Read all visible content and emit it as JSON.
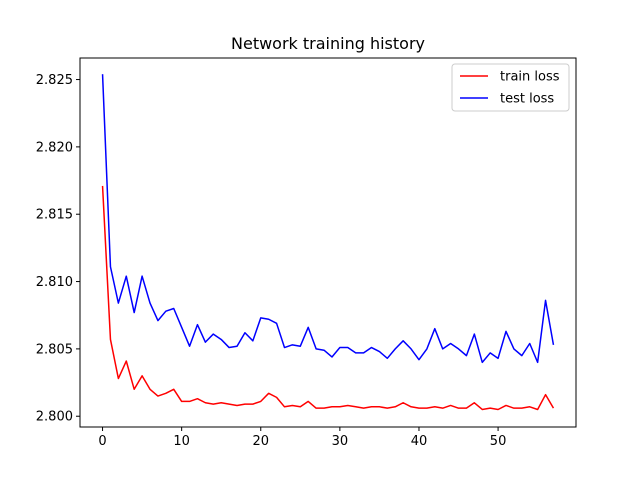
{
  "chart_data": {
    "type": "line",
    "title": "Network training history",
    "xlabel": "",
    "ylabel": "",
    "xlim": [
      -2.85,
      59.85
    ],
    "ylim": [
      2.7992,
      2.8266
    ],
    "xticks": [
      0,
      10,
      20,
      30,
      40,
      50
    ],
    "yticks": [
      2.8,
      2.805,
      2.81,
      2.815,
      2.82,
      2.825
    ],
    "ytick_labels": [
      "2.800",
      "2.805",
      "2.810",
      "2.815",
      "2.820",
      "2.825"
    ],
    "grid": false,
    "legend_position": "top-right",
    "series": [
      {
        "name": "train loss",
        "color": "#ff0000",
        "values": [
          2.8171,
          2.8057,
          2.8028,
          2.8041,
          2.802,
          2.803,
          2.802,
          2.8015,
          2.8017,
          2.802,
          2.8011,
          2.8011,
          2.8013,
          2.801,
          2.8009,
          2.801,
          2.8009,
          2.8008,
          2.8009,
          2.8009,
          2.8011,
          2.8017,
          2.8014,
          2.8007,
          2.8008,
          2.8007,
          2.8011,
          2.8006,
          2.8006,
          2.8007,
          2.8007,
          2.8008,
          2.8007,
          2.8006,
          2.8007,
          2.8007,
          2.8006,
          2.8007,
          2.801,
          2.8007,
          2.8006,
          2.8006,
          2.8007,
          2.8006,
          2.8008,
          2.8006,
          2.8006,
          2.801,
          2.8005,
          2.8006,
          2.8005,
          2.8008,
          2.8006,
          2.8006,
          2.8007,
          2.8005,
          2.8016,
          2.8006
        ]
      },
      {
        "name": "test loss",
        "color": "#0000ff",
        "values": [
          2.8254,
          2.8111,
          2.8084,
          2.8104,
          2.8077,
          2.8104,
          2.8084,
          2.8071,
          2.8078,
          2.808,
          2.8066,
          2.8052,
          2.8068,
          2.8055,
          2.8061,
          2.8057,
          2.8051,
          2.8052,
          2.8062,
          2.8056,
          2.8073,
          2.8072,
          2.8069,
          2.8051,
          2.8053,
          2.8052,
          2.8066,
          2.805,
          2.8049,
          2.8044,
          2.8051,
          2.8051,
          2.8047,
          2.8047,
          2.8051,
          2.8048,
          2.8043,
          2.805,
          2.8056,
          2.805,
          2.8042,
          2.805,
          2.8065,
          2.805,
          2.8054,
          2.805,
          2.8045,
          2.8061,
          2.804,
          2.8047,
          2.8043,
          2.8063,
          2.805,
          2.8045,
          2.8054,
          2.804,
          2.8086,
          2.8053
        ]
      }
    ]
  }
}
